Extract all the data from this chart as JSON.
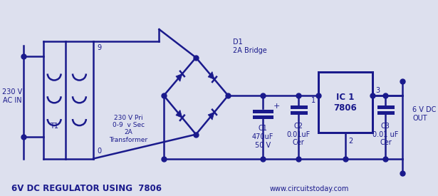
{
  "bg_color": "#dde0ee",
  "line_color": "#1a1a8c",
  "lw": 1.8,
  "fs": 7.0,
  "fs_bold": 8.5,
  "dot_ms": 5,
  "title": "6V DC REGULATOR USING  7806",
  "website": "www.circuitstoday.com",
  "label_230v": "230 V\nAC IN",
  "label_t1": "T1",
  "label_transformer": "230 V Pri\n0-9  v Sec\n2A\nTransformer",
  "label_d1": "D1\n2A Bridge",
  "label_9": "9",
  "label_0": "0",
  "label_c1": "C1\n470uF\n50 V",
  "label_c1_plus": "+",
  "label_c2": "C2\n0.01uF\nCer",
  "label_c3": "C3\n0.01 uF\nCer",
  "label_ic": "IC 1\n7806",
  "label_1": "1",
  "label_2": "2",
  "label_3": "3",
  "label_6vdc": "6 V DC\nOUT"
}
